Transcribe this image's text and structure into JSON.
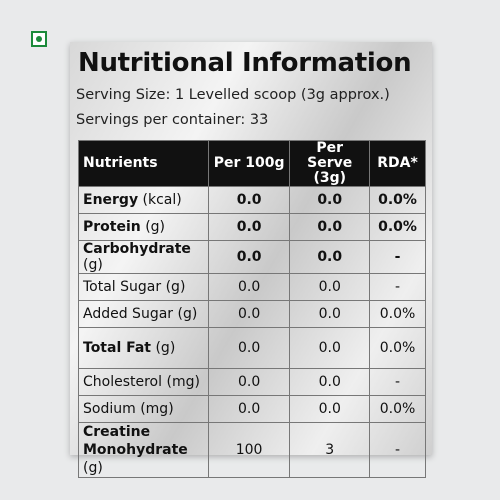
{
  "title": "Nutritional Information",
  "serving_size": "Serving Size: 1 Levelled scoop (3g approx.)",
  "servings": "Servings per container: 33",
  "table": {
    "header": [
      "Nutrients",
      "Per 100g",
      "Per Serve (3g)",
      "RDA*"
    ],
    "rows": [
      {
        "name": "Energy",
        "unit": "(kcal)",
        "cells": [
          "0.0",
          "0.0",
          "0.0%"
        ],
        "bold": true
      },
      {
        "name": "Protein",
        "unit": "(g)",
        "cells": [
          "0.0",
          "0.0",
          "0.0%"
        ],
        "bold": true
      },
      {
        "name": "Carbohydrate",
        "unit": "(g)",
        "cells": [
          "0.0",
          "0.0",
          "-"
        ],
        "bold": true
      },
      {
        "name": "Total Sugar",
        "unit": "(g)",
        "cells": [
          "0.0",
          "0.0",
          "-"
        ],
        "bold": false
      },
      {
        "name": "Added Sugar",
        "unit": "(g)",
        "cells": [
          "0.0",
          "0.0",
          "0.0%"
        ],
        "bold": false
      },
      {
        "name": "Total Fat",
        "unit": "(g)",
        "cells": [
          "0.0",
          "0.0",
          "0.0%"
        ],
        "bold": true
      },
      {
        "name": "Cholesterol",
        "unit": "(mg)",
        "cells": [
          "0.0",
          "0.0",
          "-"
        ],
        "bold": false
      },
      {
        "name": "Sodium",
        "unit": "(mg)",
        "cells": [
          "0.0",
          "0.0",
          "0.0%"
        ],
        "bold": false
      },
      {
        "name": "Creatine Monohydrate",
        "unit": "(g)",
        "cells": [
          "100",
          "3",
          "-"
        ],
        "bold": true
      }
    ]
  }
}
